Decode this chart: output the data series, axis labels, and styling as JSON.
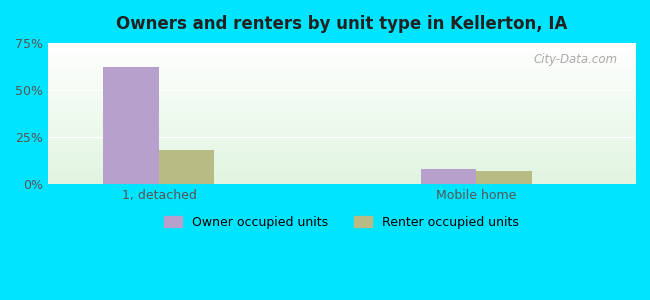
{
  "title": "Owners and renters by unit type in Kellerton, IA",
  "categories": [
    "1, detached",
    "Mobile home"
  ],
  "owner_values": [
    62.0,
    8.0
  ],
  "renter_values": [
    18.0,
    7.0
  ],
  "owner_color": "#b8a0cc",
  "renter_color": "#b8bc84",
  "background_outer": "#00e5ff",
  "ylim": [
    0,
    75
  ],
  "yticks": [
    0,
    25,
    50,
    75
  ],
  "ytick_labels": [
    "0%",
    "25%",
    "50%",
    "75%"
  ],
  "legend_labels": [
    "Owner occupied units",
    "Renter occupied units"
  ],
  "bar_width": 0.35,
  "group_positions": [
    1.0,
    3.0
  ],
  "xlim": [
    0.3,
    4.0
  ],
  "watermark": "City-Data.com"
}
